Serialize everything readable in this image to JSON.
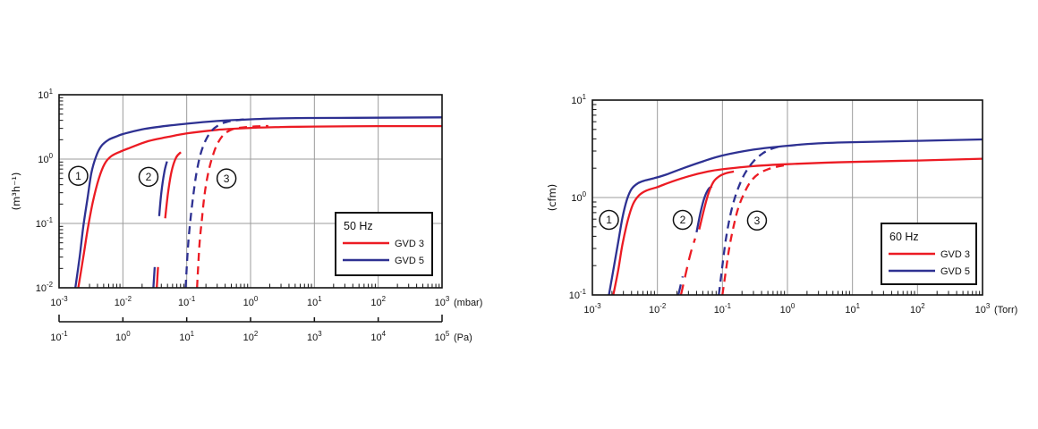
{
  "page": {
    "background": "#ffffff"
  },
  "colors": {
    "gvd3_red": "#ec1b23",
    "gvd5_blue": "#2e3192",
    "grid": "#9b9b9b",
    "axis": "#111111",
    "text": "#111111",
    "legend_bg": "#ffffff",
    "legend_border": "#111111"
  },
  "chart_data": [
    {
      "id": "chart-50hz",
      "type": "line",
      "title": "50 Hz",
      "grid": true,
      "x_axis": {
        "scale": "log",
        "unit_label": "(mbar)",
        "log_min": -3,
        "log_max": 3,
        "tick_exponents": [
          -3,
          -2,
          -1,
          0,
          1,
          2,
          3
        ]
      },
      "x_axis_secondary": {
        "scale": "log",
        "unit_label": "(Pa)",
        "log_min": -1,
        "log_max": 5,
        "tick_exponents": [
          -1,
          0,
          1,
          2,
          3,
          4,
          5
        ]
      },
      "y_axis": {
        "scale": "log",
        "unit_label": "(m³h⁻¹)",
        "log_min": -2,
        "log_max": 1,
        "tick_exponents": [
          -2,
          -1,
          0,
          1
        ]
      },
      "legend": {
        "title": "50 Hz",
        "position": "lower-right",
        "entries": [
          {
            "label": "GVD 3",
            "color": "gvd3_red"
          },
          {
            "label": "GVD 5",
            "color": "gvd5_blue"
          }
        ]
      },
      "annotations": [
        {
          "label": "1",
          "x": 0.002,
          "y": 0.55
        },
        {
          "label": "2",
          "x": 0.0252,
          "y": 0.53
        },
        {
          "label": "3",
          "x": 0.42,
          "y": 0.5
        }
      ],
      "series": [
        {
          "name": "GVD 5 curve 1",
          "color": "gvd5_blue",
          "style": "solid",
          "points": [
            [
              0.0018,
              0.01
            ],
            [
              0.0021,
              0.03
            ],
            [
              0.0024,
              0.09
            ],
            [
              0.0028,
              0.25
            ],
            [
              0.0032,
              0.6
            ],
            [
              0.0038,
              1.1
            ],
            [
              0.0046,
              1.6
            ],
            [
              0.006,
              2.0
            ],
            [
              0.008,
              2.25
            ],
            [
              0.01,
              2.45
            ],
            [
              0.02,
              2.9
            ],
            [
              0.05,
              3.3
            ],
            [
              0.1,
              3.55
            ],
            [
              0.3,
              3.9
            ],
            [
              1,
              4.15
            ],
            [
              3,
              4.3
            ],
            [
              10,
              4.35
            ],
            [
              100,
              4.4
            ],
            [
              1000,
              4.45
            ]
          ]
        },
        {
          "name": "GVD 3 curve 1",
          "color": "gvd3_red",
          "style": "solid",
          "points": [
            [
              0.002,
              0.01
            ],
            [
              0.0024,
              0.03
            ],
            [
              0.0028,
              0.08
            ],
            [
              0.0034,
              0.22
            ],
            [
              0.0042,
              0.5
            ],
            [
              0.0052,
              0.85
            ],
            [
              0.0065,
              1.1
            ],
            [
              0.009,
              1.3
            ],
            [
              0.013,
              1.5
            ],
            [
              0.025,
              1.9
            ],
            [
              0.05,
              2.2
            ],
            [
              0.1,
              2.5
            ],
            [
              0.3,
              2.85
            ],
            [
              1,
              3.05
            ],
            [
              3,
              3.15
            ],
            [
              10,
              3.2
            ],
            [
              100,
              3.25
            ],
            [
              1000,
              3.25
            ]
          ]
        },
        {
          "name": "GVD 5 curve 2 lower stub",
          "color": "gvd5_blue",
          "style": "solid",
          "points": [
            [
              0.03,
              0.01
            ],
            [
              0.0315,
              0.021
            ]
          ]
        },
        {
          "name": "GVD 3 curve 2 lower stub",
          "color": "gvd3_red",
          "style": "solid",
          "points": [
            [
              0.034,
              0.01
            ],
            [
              0.0355,
              0.021
            ]
          ]
        },
        {
          "name": "GVD 5 curve 2",
          "color": "gvd5_blue",
          "style": "solid",
          "points": [
            [
              0.037,
              0.13
            ],
            [
              0.04,
              0.3
            ],
            [
              0.0445,
              0.62
            ],
            [
              0.049,
              0.92
            ]
          ]
        },
        {
          "name": "GVD 3 curve 2",
          "color": "gvd3_red",
          "style": "solid",
          "points": [
            [
              0.046,
              0.12
            ],
            [
              0.051,
              0.3
            ],
            [
              0.058,
              0.65
            ],
            [
              0.068,
              1.05
            ],
            [
              0.081,
              1.28
            ]
          ]
        },
        {
          "name": "GVD 5 curve 3",
          "color": "gvd5_blue",
          "style": "dashed",
          "dash": "9 6",
          "points": [
            [
              0.096,
              0.01
            ],
            [
              0.105,
              0.045
            ],
            [
              0.115,
              0.12
            ],
            [
              0.127,
              0.28
            ],
            [
              0.142,
              0.6
            ],
            [
              0.163,
              1.15
            ],
            [
              0.195,
              1.9
            ],
            [
              0.245,
              2.75
            ],
            [
              0.33,
              3.45
            ],
            [
              0.46,
              3.85
            ],
            [
              0.65,
              4.05
            ],
            [
              0.95,
              4.18
            ]
          ]
        },
        {
          "name": "GVD 3 curve 3",
          "color": "gvd3_red",
          "style": "dashed",
          "dash": "9 6",
          "points": [
            [
              0.145,
              0.01
            ],
            [
              0.158,
              0.045
            ],
            [
              0.172,
              0.11
            ],
            [
              0.19,
              0.28
            ],
            [
              0.215,
              0.58
            ],
            [
              0.25,
              1.05
            ],
            [
              0.3,
              1.7
            ],
            [
              0.38,
              2.4
            ],
            [
              0.52,
              2.9
            ],
            [
              0.75,
              3.1
            ],
            [
              1.2,
              3.22
            ],
            [
              1.9,
              3.26
            ]
          ]
        }
      ]
    },
    {
      "id": "chart-60hz",
      "type": "line",
      "title": "60 Hz",
      "grid": true,
      "x_axis": {
        "scale": "log",
        "unit_label": "(Torr)",
        "log_min": -3,
        "log_max": 3,
        "tick_exponents": [
          -3,
          -2,
          -1,
          0,
          1,
          2,
          3
        ]
      },
      "y_axis": {
        "scale": "log",
        "unit_label": "(cfm)",
        "log_min": -1,
        "log_max": 1,
        "tick_exponents": [
          -1,
          0,
          1
        ]
      },
      "legend": {
        "title": "60 Hz",
        "position": "lower-right",
        "entries": [
          {
            "label": "GVD 3",
            "color": "gvd3_red"
          },
          {
            "label": "GVD 5",
            "color": "gvd5_blue"
          }
        ]
      },
      "annotations": [
        {
          "label": "1",
          "x": 0.0018,
          "y": 0.59
        },
        {
          "label": "2",
          "x": 0.0245,
          "y": 0.59
        },
        {
          "label": "3",
          "x": 0.34,
          "y": 0.58
        }
      ],
      "series": [
        {
          "name": "GVD 5 curve 1",
          "color": "gvd5_blue",
          "style": "solid",
          "points": [
            [
              0.0018,
              0.1
            ],
            [
              0.0021,
              0.18
            ],
            [
              0.0025,
              0.35
            ],
            [
              0.0029,
              0.62
            ],
            [
              0.0034,
              0.95
            ],
            [
              0.004,
              1.22
            ],
            [
              0.005,
              1.4
            ],
            [
              0.0065,
              1.5
            ],
            [
              0.009,
              1.58
            ],
            [
              0.013,
              1.7
            ],
            [
              0.025,
              2.0
            ],
            [
              0.05,
              2.35
            ],
            [
              0.1,
              2.7
            ],
            [
              0.3,
              3.1
            ],
            [
              1,
              3.4
            ],
            [
              3,
              3.6
            ],
            [
              10,
              3.7
            ],
            [
              100,
              3.82
            ],
            [
              1000,
              3.95
            ]
          ]
        },
        {
          "name": "GVD 3 curve 1",
          "color": "gvd3_red",
          "style": "solid",
          "points": [
            [
              0.0021,
              0.1
            ],
            [
              0.0025,
              0.18
            ],
            [
              0.0029,
              0.33
            ],
            [
              0.0035,
              0.58
            ],
            [
              0.0042,
              0.85
            ],
            [
              0.0052,
              1.05
            ],
            [
              0.0068,
              1.18
            ],
            [
              0.01,
              1.28
            ],
            [
              0.015,
              1.42
            ],
            [
              0.03,
              1.65
            ],
            [
              0.06,
              1.85
            ],
            [
              0.1,
              1.95
            ],
            [
              0.3,
              2.1
            ],
            [
              1,
              2.2
            ],
            [
              10,
              2.32
            ],
            [
              100,
              2.4
            ],
            [
              1000,
              2.5
            ]
          ]
        },
        {
          "name": "GVD 5 curve 2 lower",
          "color": "gvd5_blue",
          "style": "dashed",
          "dash": "12 8",
          "points": [
            [
              0.021,
              0.1
            ],
            [
              0.0245,
              0.155
            ]
          ]
        },
        {
          "name": "GVD 3 curve 2 lower",
          "color": "gvd3_red",
          "style": "dashed",
          "dash": "12 8",
          "points": [
            [
              0.023,
              0.1
            ],
            [
              0.027,
              0.16
            ],
            [
              0.032,
              0.26
            ],
            [
              0.038,
              0.38
            ]
          ]
        },
        {
          "name": "GVD 5 curve 2",
          "color": "gvd5_blue",
          "style": "solid",
          "points": [
            [
              0.04,
              0.44
            ],
            [
              0.046,
              0.7
            ],
            [
              0.053,
              1.0
            ],
            [
              0.061,
              1.22
            ],
            [
              0.069,
              1.3
            ]
          ]
        },
        {
          "name": "GVD 3 curve 2",
          "color": "gvd3_red",
          "style": "solid",
          "points": [
            [
              0.044,
              0.47
            ],
            [
              0.052,
              0.75
            ],
            [
              0.061,
              1.1
            ],
            [
              0.073,
              1.45
            ],
            [
              0.089,
              1.65
            ],
            [
              0.115,
              1.78
            ],
            [
              0.15,
              1.85
            ]
          ]
        },
        {
          "name": "GVD 5 curve 3",
          "color": "gvd5_blue",
          "style": "dashed",
          "dash": "9 6",
          "points": [
            [
              0.088,
              0.1
            ],
            [
              0.098,
              0.18
            ],
            [
              0.11,
              0.33
            ],
            [
              0.125,
              0.55
            ],
            [
              0.145,
              0.85
            ],
            [
              0.175,
              1.25
            ],
            [
              0.22,
              1.75
            ],
            [
              0.3,
              2.35
            ],
            [
              0.42,
              2.85
            ],
            [
              0.6,
              3.2
            ],
            [
              0.85,
              3.4
            ]
          ]
        },
        {
          "name": "GVD 3 curve 3",
          "color": "gvd3_red",
          "style": "dashed",
          "dash": "9 6",
          "points": [
            [
              0.1,
              0.1
            ],
            [
              0.112,
              0.17
            ],
            [
              0.127,
              0.3
            ],
            [
              0.148,
              0.5
            ],
            [
              0.175,
              0.78
            ],
            [
              0.215,
              1.1
            ],
            [
              0.27,
              1.45
            ],
            [
              0.36,
              1.75
            ],
            [
              0.5,
              1.95
            ],
            [
              0.72,
              2.08
            ],
            [
              0.98,
              2.16
            ]
          ]
        }
      ]
    }
  ]
}
